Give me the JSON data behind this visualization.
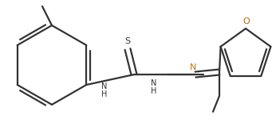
{
  "background_color": "#ffffff",
  "bond_color": "#333333",
  "atom_color_N": "#c87000",
  "atom_color_O": "#c06000",
  "atom_color_S": "#333333",
  "line_width": 1.6,
  "figsize": [
    3.46,
    1.64
  ],
  "dpi": 100,
  "xlim": [
    0,
    346
  ],
  "ylim": [
    0,
    164
  ]
}
